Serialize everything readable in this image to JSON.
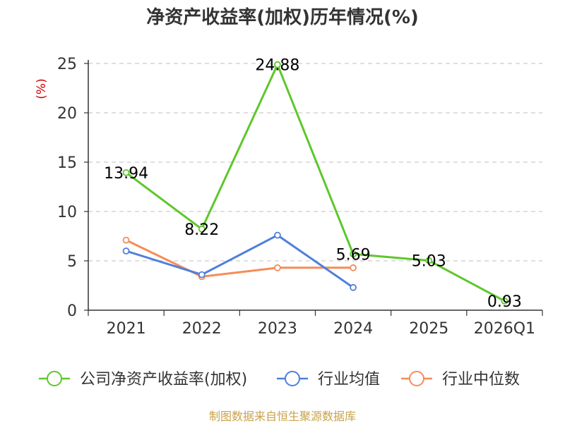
{
  "chart_data": {
    "type": "line",
    "title": "净资产收益率(加权)历年情况(%)",
    "y_unit": "(%)",
    "categories": [
      "2021",
      "2022",
      "2023",
      "2024",
      "2025",
      "2026Q1"
    ],
    "ylim": [
      0,
      25
    ],
    "y_ticks": [
      0,
      5,
      10,
      15,
      20,
      25
    ],
    "grid": true,
    "legend_position": "bottom",
    "series": [
      {
        "name": "公司净资产收益率(加权)",
        "color": "#5ec72b",
        "values": [
          13.94,
          8.22,
          24.88,
          5.69,
          5.03,
          0.93
        ],
        "labels": [
          "13.94",
          "8.22",
          "24.88",
          "5.69",
          "5.03",
          "0.93"
        ]
      },
      {
        "name": "行业均值",
        "color": "#4f7fdb",
        "values": [
          6.0,
          3.6,
          7.6,
          2.3,
          null,
          null
        ]
      },
      {
        "name": "行业中位数",
        "color": "#f58c5a",
        "values": [
          7.1,
          3.4,
          4.3,
          4.3,
          null,
          null
        ]
      }
    ]
  },
  "source_text": "制图数据来自恒生聚源数据库",
  "source_color": "#c8a24a",
  "unit_color": "#cc0000"
}
